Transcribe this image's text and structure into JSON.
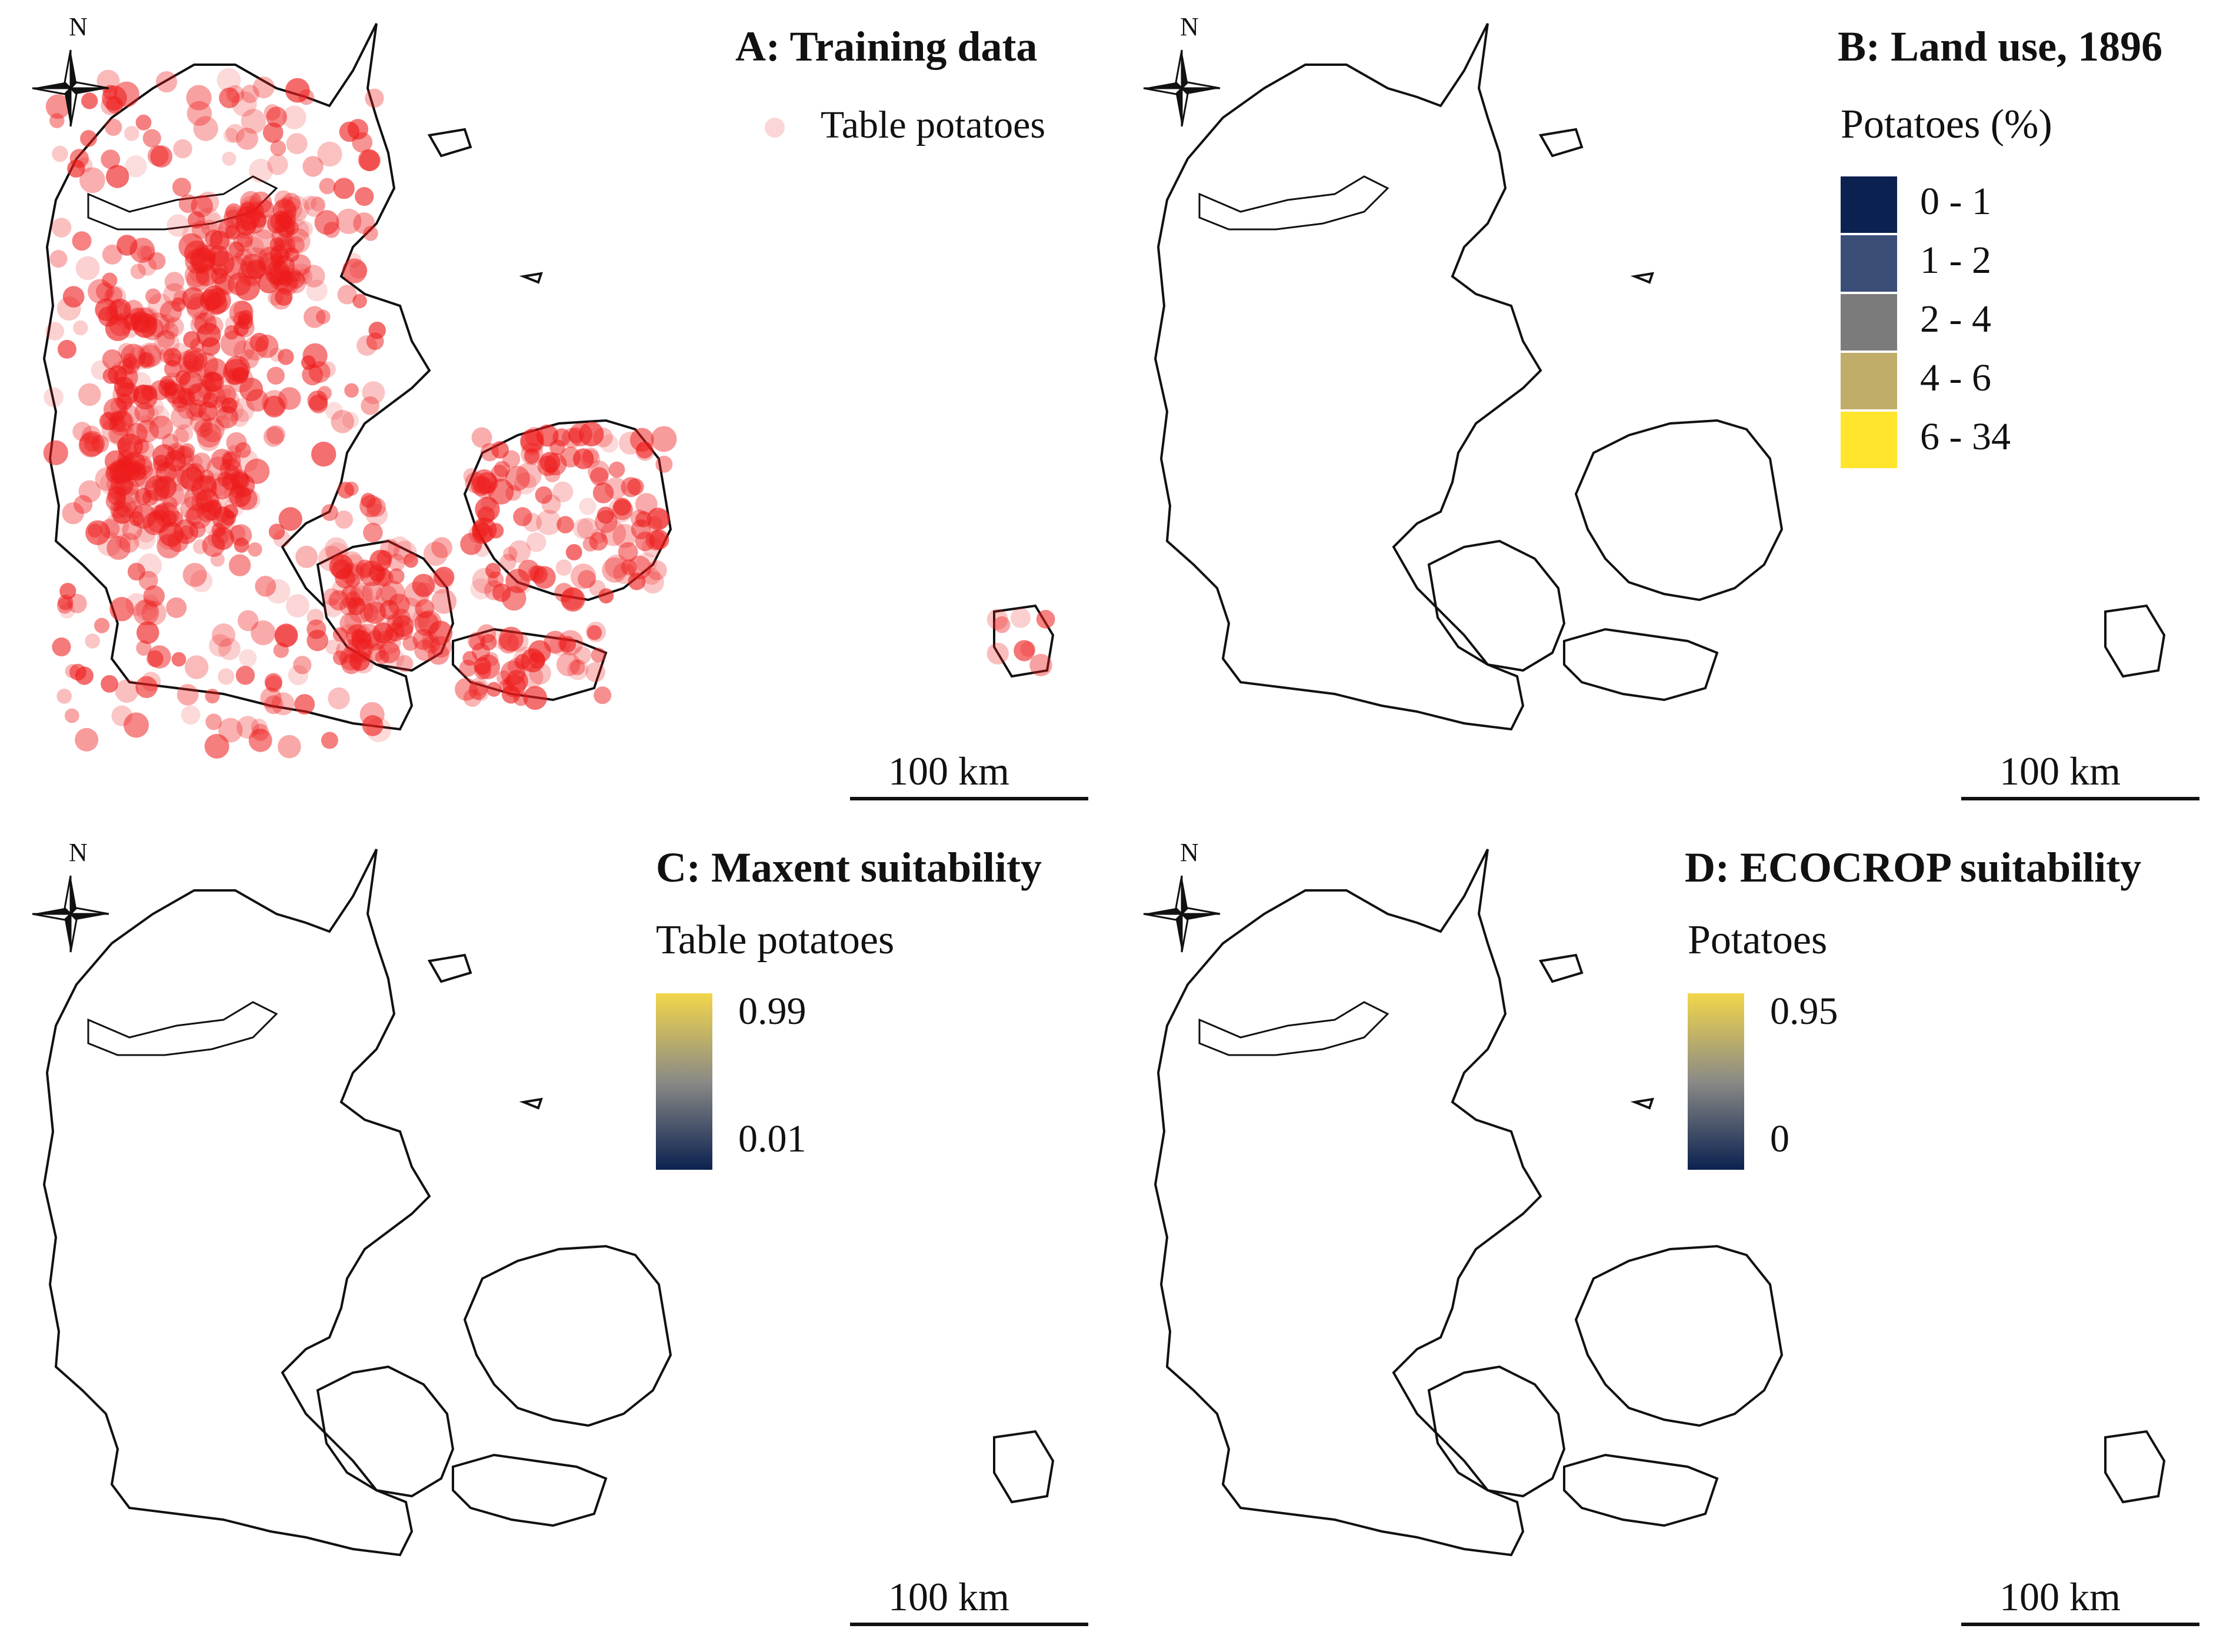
{
  "north_label": "N",
  "scale_label": "100 km",
  "colors": {
    "dark_navy": "#0b2150",
    "navy": "#3b4e78",
    "gray": "#7b7b7b",
    "tan": "#c0ad6a",
    "yellow": "#ffe52b",
    "red": "#ee1b1b",
    "outline": "#111111"
  },
  "panels": [
    {
      "id": "A",
      "title": "A: Training data",
      "legend": {
        "title": "",
        "items": [
          {
            "label": "Table potatoes",
            "color": "#ee1b1b"
          }
        ]
      }
    },
    {
      "id": "B",
      "title": "B: Land use, 1896",
      "legend": {
        "title": "Potatoes (%)",
        "items": [
          {
            "label": "0 - 1",
            "color": "#0b2150"
          },
          {
            "label": "1 - 2",
            "color": "#3b4e78"
          },
          {
            "label": "2 - 4",
            "color": "#7b7b7b"
          },
          {
            "label": "4 - 6",
            "color": "#c0ad6a"
          },
          {
            "label": "6 - 34",
            "color": "#ffe52b"
          }
        ]
      }
    },
    {
      "id": "C",
      "title": "C: Maxent suitability",
      "legend": {
        "title": "Table potatoes",
        "max": "0.99",
        "min": "0.01"
      }
    },
    {
      "id": "D",
      "title": "D: ECOCROP suitability",
      "legend": {
        "title": "Potatoes",
        "max": "0.95",
        "min": "0"
      }
    }
  ]
}
